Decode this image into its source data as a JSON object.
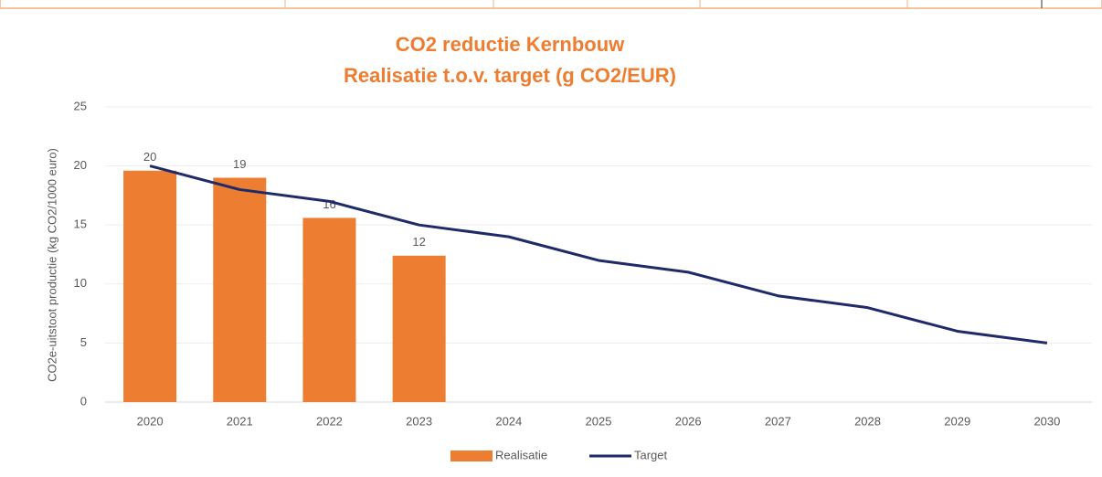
{
  "chart_data": {
    "type": "bar",
    "title": [
      "CO2 reductie Kernbouw",
      "Realisatie t.o.v. target (g CO2/EUR)"
    ],
    "y_label": "CO2e-uitstoot productie (kg CO2/1000 euro)",
    "categories": [
      "2020",
      "2021",
      "2022",
      "2023",
      "2024",
      "2025",
      "2026",
      "2027",
      "2028",
      "2029",
      "2030"
    ],
    "series": [
      {
        "name": "Realisatie",
        "type": "bar",
        "color": "#ed7d31",
        "values": [
          19.6,
          19.0,
          15.6,
          12.4,
          null,
          null,
          null,
          null,
          null,
          null,
          null
        ],
        "value_labels": [
          "20",
          "19",
          "16",
          "12",
          null,
          null,
          null,
          null,
          null,
          null,
          null
        ]
      },
      {
        "name": "Target",
        "type": "line",
        "color": "#1f2a6b",
        "values": [
          20,
          18,
          17,
          15,
          14,
          12,
          11,
          9,
          8,
          6,
          5
        ]
      }
    ],
    "ylim": [
      0,
      25
    ],
    "yticks": [
      0,
      5,
      10,
      15,
      20,
      25
    ],
    "grid": true,
    "legend": "bottom"
  }
}
